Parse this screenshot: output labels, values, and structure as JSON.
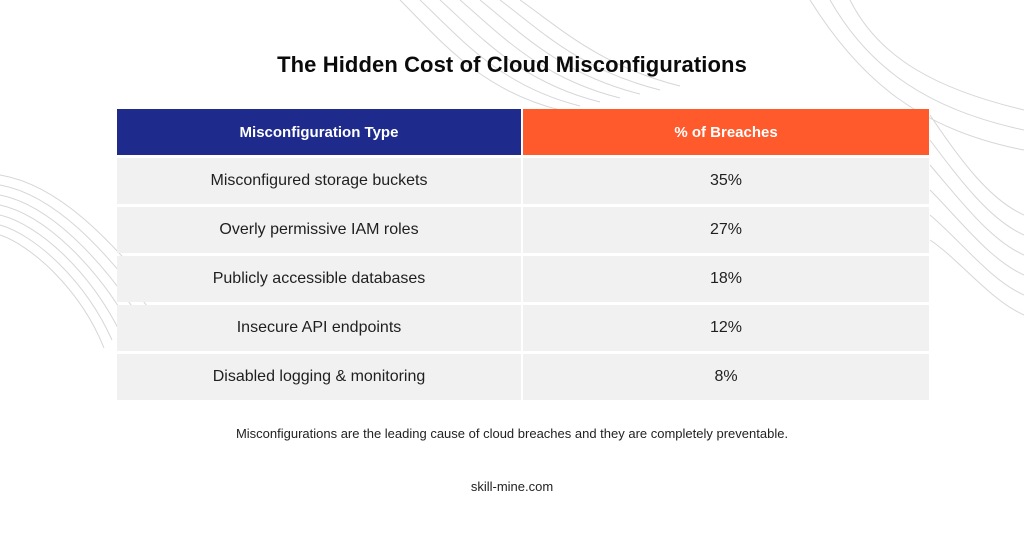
{
  "title": "The Hidden Cost of Cloud Misconfigurations",
  "table": {
    "headers": [
      "Misconfiguration Type",
      "% of Breaches"
    ],
    "rows": [
      [
        "Misconfigured storage buckets",
        "35%"
      ],
      [
        "Overly permissive IAM roles",
        "27%"
      ],
      [
        "Publicly accessible databases",
        "18%"
      ],
      [
        "Insecure API endpoints",
        "12%"
      ],
      [
        "Disabled logging & monitoring",
        "8%"
      ]
    ]
  },
  "note": "Misconfigurations are the leading cause of cloud breaches and they are completely preventable.",
  "footer": "skill-mine.com",
  "colors": {
    "header_left": "#1e2a8c",
    "header_right": "#ff5a2b",
    "row_bg": "#f1f1f1"
  }
}
